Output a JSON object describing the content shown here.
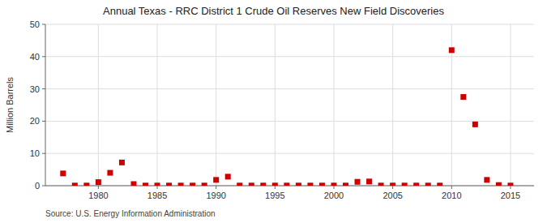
{
  "chart_data": {
    "type": "scatter",
    "title": "Annual Texas - RRC District 1 Crude Oil Reserves New Field Discoveries",
    "y_label": "Million Barrels",
    "source": "Source: U.S. Energy Information Administration",
    "color": "#cc0000",
    "marker": "square",
    "grid": true,
    "xlim": [
      1975.5,
      2017
    ],
    "xticks": [
      1980,
      1985,
      1990,
      1995,
      2000,
      2005,
      2010,
      2015
    ],
    "ylim": [
      0,
      50
    ],
    "yticks": [
      0,
      10,
      20,
      30,
      40,
      50
    ],
    "x": [
      1977,
      1978,
      1979,
      1980,
      1981,
      1982,
      1983,
      1984,
      1985,
      1986,
      1987,
      1988,
      1989,
      1990,
      1991,
      1992,
      1993,
      1994,
      1995,
      1996,
      1997,
      1998,
      1999,
      2000,
      2001,
      2002,
      2003,
      2004,
      2005,
      2006,
      2007,
      2008,
      2009,
      2010,
      2011,
      2012,
      2013,
      2014,
      2015
    ],
    "values": [
      3.8,
      0.05,
      0.05,
      1.1,
      4.0,
      7.2,
      0.5,
      0.05,
      0.05,
      0.05,
      0.05,
      0.05,
      0.05,
      1.8,
      2.8,
      0.05,
      0.05,
      0.05,
      0.05,
      0.05,
      0.05,
      0.05,
      0.05,
      0.05,
      0.05,
      1.2,
      1.3,
      0.05,
      0.05,
      0.05,
      0.05,
      0.05,
      0.05,
      42.0,
      27.5,
      19.0,
      1.8,
      0.2,
      0.05
    ]
  }
}
